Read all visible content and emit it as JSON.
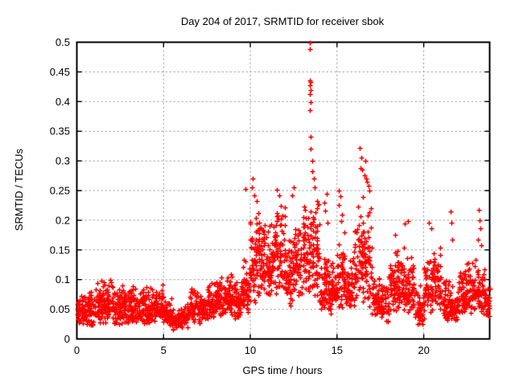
{
  "chart_data": {
    "type": "scatter",
    "title": "Day 204 of 2017, SRMTID for receiver sbok",
    "xlabel": "GPS time / hours",
    "ylabel": "SRMTID / TECUs",
    "xlim": [
      0,
      23.8
    ],
    "ylim": [
      0,
      0.5
    ],
    "grid": true,
    "legend": false,
    "marker": "plus-cross",
    "marker_color": "#ff0000",
    "grid_color": "#a9a9a9",
    "border_color": "#000000",
    "xticks": [
      {
        "v": 0,
        "label": "0"
      },
      {
        "v": 5,
        "label": "5"
      },
      {
        "v": 10,
        "label": "10"
      },
      {
        "v": 15,
        "label": "15"
      },
      {
        "v": 20,
        "label": "20"
      }
    ],
    "yticks": [
      {
        "v": 0.0,
        "label": "0"
      },
      {
        "v": 0.05,
        "label": "0.05"
      },
      {
        "v": 0.1,
        "label": "0.1"
      },
      {
        "v": 0.15,
        "label": "0.15"
      },
      {
        "v": 0.2,
        "label": "0.2"
      },
      {
        "v": 0.25,
        "label": "0.25"
      },
      {
        "v": 0.3,
        "label": "0.3"
      },
      {
        "v": 0.35,
        "label": "0.35"
      },
      {
        "v": 0.4,
        "label": "0.4"
      },
      {
        "v": 0.45,
        "label": "0.45"
      },
      {
        "v": 0.5,
        "label": "0.5"
      }
    ],
    "seed": 42,
    "density_bins_format": [
      "x_start_hours",
      "x_end_hours",
      "num_points",
      "y_min_TECUs",
      "y_max_TECUs"
    ],
    "density_bins": [
      [
        0.0,
        0.5,
        55,
        0.022,
        0.082
      ],
      [
        0.5,
        1.0,
        55,
        0.022,
        0.09
      ],
      [
        1.0,
        1.5,
        55,
        0.025,
        0.1
      ],
      [
        1.5,
        2.0,
        55,
        0.025,
        0.104
      ],
      [
        2.0,
        2.5,
        55,
        0.022,
        0.092
      ],
      [
        2.5,
        3.0,
        55,
        0.025,
        0.096
      ],
      [
        3.0,
        3.5,
        55,
        0.025,
        0.09
      ],
      [
        3.5,
        4.0,
        55,
        0.026,
        0.096
      ],
      [
        4.0,
        4.5,
        55,
        0.025,
        0.088
      ],
      [
        4.5,
        5.0,
        55,
        0.028,
        0.098
      ],
      [
        5.0,
        5.5,
        50,
        0.02,
        0.072
      ],
      [
        5.5,
        6.0,
        45,
        0.015,
        0.056
      ],
      [
        6.0,
        6.5,
        45,
        0.016,
        0.062
      ],
      [
        6.5,
        7.0,
        50,
        0.024,
        0.09
      ],
      [
        7.0,
        7.5,
        50,
        0.025,
        0.082
      ],
      [
        7.5,
        8.0,
        50,
        0.03,
        0.098
      ],
      [
        8.0,
        8.5,
        55,
        0.038,
        0.11
      ],
      [
        8.5,
        9.0,
        55,
        0.04,
        0.12
      ],
      [
        9.0,
        9.5,
        55,
        0.032,
        0.102
      ],
      [
        9.5,
        10.0,
        55,
        0.04,
        0.14
      ],
      [
        10.0,
        10.5,
        60,
        0.06,
        0.22
      ],
      [
        10.5,
        11.0,
        60,
        0.07,
        0.228
      ],
      [
        11.0,
        11.5,
        60,
        0.065,
        0.208
      ],
      [
        11.5,
        12.0,
        60,
        0.075,
        0.238
      ],
      [
        12.0,
        12.5,
        55,
        0.055,
        0.19
      ],
      [
        12.5,
        13.0,
        55,
        0.065,
        0.218
      ],
      [
        13.0,
        13.5,
        60,
        0.075,
        0.262
      ],
      [
        13.5,
        14.0,
        60,
        0.07,
        0.248
      ],
      [
        14.0,
        14.5,
        55,
        0.045,
        0.155
      ],
      [
        14.5,
        15.0,
        55,
        0.04,
        0.128
      ],
      [
        15.0,
        15.5,
        55,
        0.05,
        0.188
      ],
      [
        15.5,
        16.0,
        55,
        0.048,
        0.158
      ],
      [
        16.0,
        16.5,
        60,
        0.055,
        0.235
      ],
      [
        16.5,
        17.0,
        60,
        0.05,
        0.245
      ],
      [
        17.0,
        17.5,
        50,
        0.035,
        0.122
      ],
      [
        17.5,
        18.0,
        50,
        0.028,
        0.1
      ],
      [
        18.0,
        18.5,
        55,
        0.04,
        0.152
      ],
      [
        18.5,
        19.0,
        55,
        0.045,
        0.168
      ],
      [
        19.0,
        19.5,
        55,
        0.04,
        0.152
      ],
      [
        19.5,
        20.0,
        45,
        0.02,
        0.096
      ],
      [
        20.0,
        20.5,
        55,
        0.045,
        0.142
      ],
      [
        20.5,
        21.0,
        55,
        0.05,
        0.158
      ],
      [
        21.0,
        21.5,
        50,
        0.028,
        0.102
      ],
      [
        21.5,
        22.0,
        50,
        0.028,
        0.094
      ],
      [
        22.0,
        22.5,
        55,
        0.04,
        0.128
      ],
      [
        22.5,
        23.0,
        55,
        0.042,
        0.138
      ],
      [
        23.0,
        23.5,
        55,
        0.04,
        0.128
      ],
      [
        23.5,
        23.8,
        30,
        0.038,
        0.1
      ]
    ],
    "outlier_points": [
      [
        13.43,
        0.5
      ],
      [
        13.41,
        0.488
      ],
      [
        13.44,
        0.436
      ],
      [
        13.47,
        0.433
      ],
      [
        13.42,
        0.428
      ],
      [
        13.46,
        0.42
      ],
      [
        13.44,
        0.412
      ],
      [
        13.47,
        0.399
      ],
      [
        13.43,
        0.386
      ],
      [
        13.5,
        0.341
      ],
      [
        13.46,
        0.321
      ],
      [
        13.58,
        0.3
      ],
      [
        13.55,
        0.282
      ],
      [
        13.64,
        0.27
      ],
      [
        13.69,
        0.255
      ],
      [
        9.7,
        0.253
      ],
      [
        10.07,
        0.255
      ],
      [
        10.12,
        0.27
      ],
      [
        10.25,
        0.242
      ],
      [
        10.35,
        0.232
      ],
      [
        11.55,
        0.252
      ],
      [
        11.65,
        0.242
      ],
      [
        12.48,
        0.256
      ],
      [
        12.4,
        0.242
      ],
      [
        14.39,
        0.245
      ],
      [
        14.28,
        0.229
      ],
      [
        14.33,
        0.216
      ],
      [
        14.45,
        0.196
      ],
      [
        15.12,
        0.25
      ],
      [
        15.18,
        0.24
      ],
      [
        15.1,
        0.225
      ],
      [
        15.28,
        0.21
      ],
      [
        15.22,
        0.198
      ],
      [
        16.33,
        0.322
      ],
      [
        16.42,
        0.305
      ],
      [
        16.36,
        0.288
      ],
      [
        16.45,
        0.285
      ],
      [
        16.62,
        0.3
      ],
      [
        16.58,
        0.276
      ],
      [
        16.66,
        0.27
      ],
      [
        16.72,
        0.265
      ],
      [
        16.8,
        0.258
      ],
      [
        16.88,
        0.25
      ],
      [
        18.35,
        0.176
      ],
      [
        18.9,
        0.194
      ],
      [
        19.1,
        0.198
      ],
      [
        20.3,
        0.196
      ],
      [
        20.42,
        0.186
      ],
      [
        21.55,
        0.215
      ],
      [
        21.6,
        0.196
      ],
      [
        21.62,
        0.168
      ],
      [
        23.18,
        0.218
      ],
      [
        23.22,
        0.2
      ],
      [
        23.28,
        0.186
      ],
      [
        23.12,
        0.168
      ],
      [
        23.3,
        0.158
      ]
    ]
  }
}
